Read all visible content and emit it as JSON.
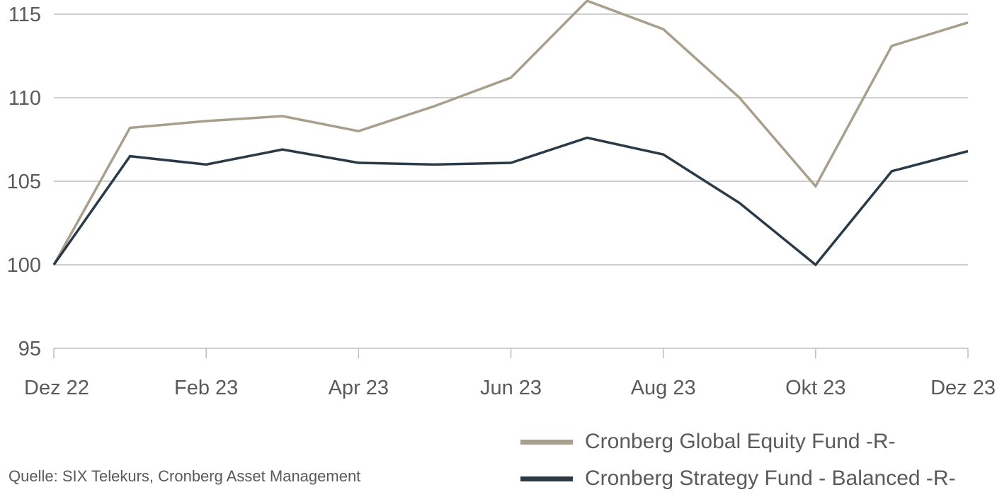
{
  "chart_data": {
    "type": "line",
    "x": [
      "Dez 22",
      "Jan 23",
      "Feb 23",
      "Mrz 23",
      "Apr 23",
      "Mai 23",
      "Jun 23",
      "Jul 23",
      "Aug 23",
      "Sep 23",
      "Okt 23",
      "Nov 23",
      "Dez 23"
    ],
    "x_tick_labels": [
      "Dez 22",
      "Feb 23",
      "Apr 23",
      "Jun 23",
      "Aug 23",
      "Okt 23",
      "Dez 23"
    ],
    "y_ticks": [
      95,
      100,
      105,
      110,
      115
    ],
    "ylim": [
      95,
      115.8
    ],
    "grid": true,
    "legend_position": "bottom-right",
    "series": [
      {
        "name": "Cronberg Global Equity Fund -R-",
        "color": "#a89f8c",
        "values": [
          100,
          108.2,
          108.6,
          108.9,
          108.0,
          109.5,
          111.2,
          115.8,
          114.1,
          110.0,
          104.7,
          113.1,
          114.5
        ]
      },
      {
        "name": "Cronberg Strategy Fund - Balanced -R-",
        "color": "#2b3a47",
        "values": [
          100,
          106.5,
          106.0,
          106.9,
          106.1,
          106.0,
          106.1,
          107.6,
          106.6,
          103.7,
          100.0,
          105.6,
          106.8
        ]
      }
    ]
  },
  "source": "Quelle: SIX Telekurs, Cronberg Asset Management"
}
